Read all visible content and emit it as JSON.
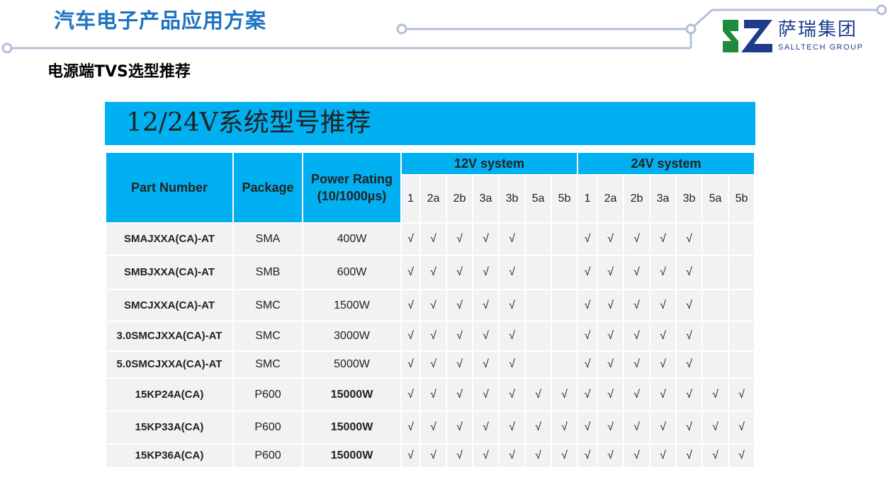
{
  "header": {
    "title": "汽车电子产品应用方案",
    "subtitle": "电源端TVS选型推荐"
  },
  "logo": {
    "cn": "萨瑞集团",
    "en": "SALLTECH GROUP",
    "colors": {
      "green": "#1e8a3c",
      "blue": "#1d3c8c"
    }
  },
  "banner": {
    "text": "12/24V系统型号推荐",
    "color": "#00b0f0"
  },
  "table": {
    "headers": {
      "part": "Part Number",
      "package": "Package",
      "power_line1": "Power Rating",
      "power_line2": "(10/1000µs)",
      "group_12v": "12V system",
      "group_24v": "24V system"
    },
    "sub_columns": [
      "1",
      "2a",
      "2b",
      "3a",
      "3b",
      "5a",
      "5b"
    ],
    "check": "√",
    "rows": [
      {
        "part": "SMAJXXA(CA)-AT",
        "package": "SMA",
        "power": "400W",
        "v12": [
          1,
          1,
          1,
          1,
          1,
          0,
          0
        ],
        "v24": [
          1,
          1,
          1,
          1,
          1,
          0,
          0
        ]
      },
      {
        "part": "SMBJXXA(CA)-AT",
        "package": "SMB",
        "power": "600W",
        "v12": [
          1,
          1,
          1,
          1,
          1,
          0,
          0
        ],
        "v24": [
          1,
          1,
          1,
          1,
          1,
          0,
          0
        ]
      },
      {
        "part": "SMCJXXA(CA)-AT",
        "package": "SMC",
        "power": "1500W",
        "v12": [
          1,
          1,
          1,
          1,
          1,
          0,
          0
        ],
        "v24": [
          1,
          1,
          1,
          1,
          1,
          0,
          0
        ]
      },
      {
        "part": "3.0SMCJXXA(CA)-AT",
        "package": "SMC",
        "power": "3000W",
        "v12": [
          1,
          1,
          1,
          1,
          1,
          0,
          0
        ],
        "v24": [
          1,
          1,
          1,
          1,
          1,
          0,
          0
        ]
      },
      {
        "part": "5.0SMCJXXA(CA)-AT",
        "package": "SMC",
        "power": "5000W",
        "v12": [
          1,
          1,
          1,
          1,
          1,
          0,
          0
        ],
        "v24": [
          1,
          1,
          1,
          1,
          1,
          0,
          0
        ]
      },
      {
        "part": "15KP24A(CA)",
        "package": "P600",
        "power": "15000W",
        "v12": [
          1,
          1,
          1,
          1,
          1,
          1,
          1
        ],
        "v24": [
          1,
          1,
          1,
          1,
          1,
          1,
          1
        ]
      },
      {
        "part": "15KP33A(CA)",
        "package": "P600",
        "power": "15000W",
        "v12": [
          1,
          1,
          1,
          1,
          1,
          1,
          1
        ],
        "v24": [
          1,
          1,
          1,
          1,
          1,
          1,
          1
        ]
      },
      {
        "part": "15KP36A(CA)",
        "package": "P600",
        "power": "15000W",
        "v12": [
          1,
          1,
          1,
          1,
          1,
          1,
          1
        ],
        "v24": [
          1,
          1,
          1,
          1,
          1,
          1,
          1
        ]
      }
    ]
  }
}
